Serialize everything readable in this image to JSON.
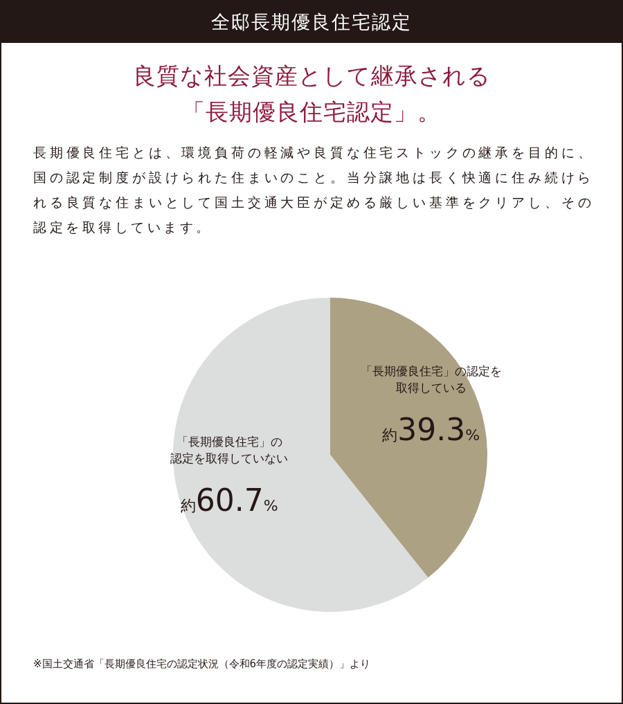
{
  "chart_data": {
    "type": "pie",
    "title": "全邸長期優良住宅認定",
    "subtitle": "良質な社会資産として継承される「長期優良住宅認定」。",
    "categories": [
      "「長期優良住宅」の認定を取得している",
      "「長期優良住宅」の認定を取得していない"
    ],
    "values": [
      39.3,
      60.7
    ],
    "colors": [
      "#ada184",
      "#dcdddd"
    ],
    "value_labels": [
      "約39.3%",
      "約60.7%"
    ],
    "annotations": [
      "長期優良住宅とは、環境負荷の軽減や良質な住宅ストックの継承を目的に、国の認定制度が設けられた住まいのこと。当分譲地は長く快適に住み続けられる良質な住まいとして国土交通大臣が定める厳しい基準をクリアし、その認定を取得しています。",
      "※国土交通省「長期優良住宅の認定状況（令和6年度の認定実績）」より"
    ]
  }
}
